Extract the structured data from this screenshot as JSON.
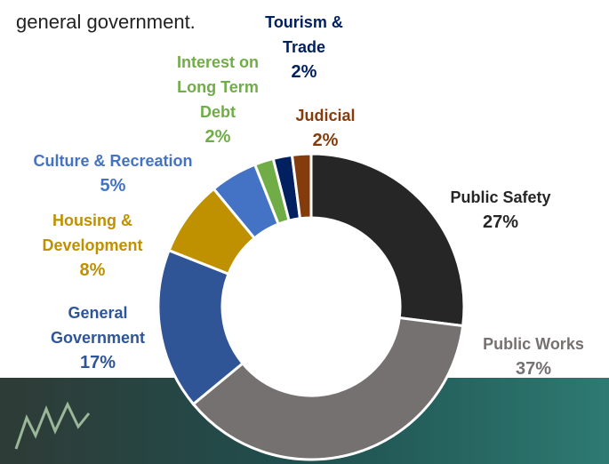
{
  "caption": "general government.",
  "chart_data": {
    "type": "donut",
    "categories": [
      "Public Safety",
      "Public Works",
      "General Government",
      "Housing & Development",
      "Culture & Recreation",
      "Interest on Long Term Debt",
      "Tourism & Trade",
      "Judicial"
    ],
    "values": [
      27,
      37,
      17,
      8,
      5,
      2,
      2,
      2
    ],
    "value_labels": [
      "27%",
      "37%",
      "17%",
      "8%",
      "5%",
      "2%",
      "2%",
      "2%"
    ],
    "colors": [
      "#262626",
      "#767171",
      "#2f5597",
      "#bf9000",
      "#4472c4",
      "#70ad47",
      "#002060",
      "#843c0c"
    ]
  }
}
